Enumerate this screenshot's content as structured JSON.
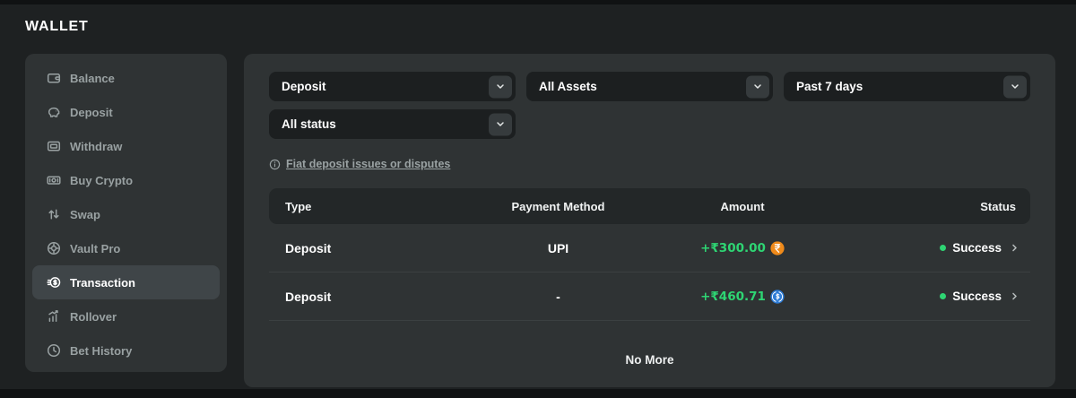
{
  "page": {
    "title": "WALLET"
  },
  "sidebar": {
    "items": [
      {
        "label": "Balance",
        "icon": "wallet-icon",
        "selected": false
      },
      {
        "label": "Deposit",
        "icon": "piggy-bank-icon",
        "selected": false
      },
      {
        "label": "Withdraw",
        "icon": "withdraw-note-icon",
        "selected": false
      },
      {
        "label": "Buy Crypto",
        "icon": "banknote-icon",
        "selected": false
      },
      {
        "label": "Swap",
        "icon": "swap-arrows-icon",
        "selected": false
      },
      {
        "label": "Vault Pro",
        "icon": "vault-dial-icon",
        "selected": false
      },
      {
        "label": "Transaction",
        "icon": "transaction-coin-icon",
        "selected": true
      },
      {
        "label": "Rollover",
        "icon": "rollover-chart-icon",
        "selected": false
      },
      {
        "label": "Bet History",
        "icon": "history-clock-icon",
        "selected": false
      }
    ]
  },
  "filters": {
    "type": {
      "value": "Deposit"
    },
    "asset": {
      "value": "All Assets"
    },
    "period": {
      "value": "Past 7 days"
    },
    "status": {
      "value": "All status"
    }
  },
  "dispute_link": {
    "label": "Fiat deposit issues or disputes"
  },
  "table": {
    "headers": {
      "type": "Type",
      "payment_method": "Payment Method",
      "amount": "Amount",
      "status": "Status"
    },
    "rows": [
      {
        "type": "Deposit",
        "payment_method": "UPI",
        "amount": "+₹300.00",
        "currency_icon": "inr-coin-icon",
        "status": "Success"
      },
      {
        "type": "Deposit",
        "payment_method": "-",
        "amount": "+₹460.71",
        "currency_icon": "usdc-coin-icon",
        "status": "Success"
      }
    ],
    "empty_text": "No More"
  },
  "colors": {
    "positive_amount": "#2ed573",
    "success": "#2ed573",
    "inr_coin": "#ef8a1a",
    "usdc_coin": "#2e7cd6"
  }
}
